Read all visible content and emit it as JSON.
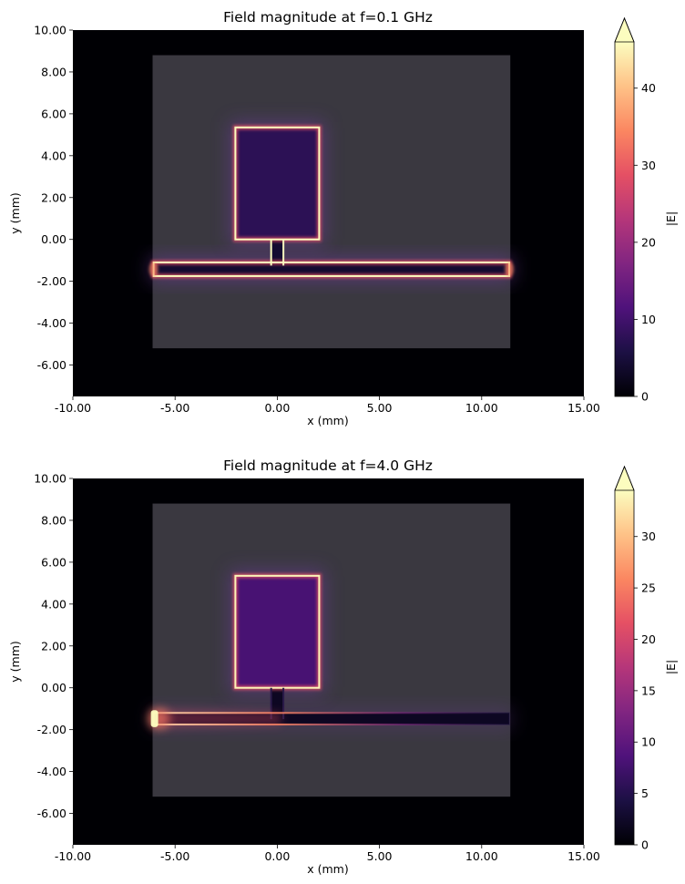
{
  "chart_data": [
    {
      "type": "heatmap",
      "title": "Field magnitude at f=0.1 GHz",
      "xlabel": "x (mm)",
      "ylabel": "y (mm)",
      "xlim": [
        -10,
        15
      ],
      "ylim": [
        -7.5,
        10
      ],
      "x_ticks": [
        -10,
        -5,
        0,
        5,
        10,
        15
      ],
      "x_tick_labels": [
        "-10.00",
        "-5.00",
        "0.00",
        "5.00",
        "10.00",
        "15.00"
      ],
      "y_ticks": [
        -6,
        -4,
        -2,
        0,
        2,
        4,
        6,
        8,
        10
      ],
      "y_tick_labels": [
        "-6.00",
        "-4.00",
        "-2.00",
        "0.00",
        "2.00",
        "4.00",
        "6.00",
        "8.00",
        "10.00"
      ],
      "colormap": "magma",
      "colorbar": {
        "label": "|E|",
        "min": 0,
        "max": 46,
        "extend": "max",
        "ticks": [
          0,
          10,
          20,
          30,
          40
        ],
        "tick_labels": [
          "0",
          "10",
          "20",
          "30",
          "40"
        ]
      },
      "substrate": {
        "x": [
          -6.1,
          11.4
        ],
        "y": [
          -5.2,
          8.8
        ],
        "value": 3.4
      },
      "patch": {
        "x": [
          -2.05,
          2.05
        ],
        "y": [
          0.0,
          5.35
        ],
        "interior_value": 7.5,
        "edge_value": 46
      },
      "stub": {
        "x": [
          -0.3,
          0.3
        ],
        "y": [
          -1.25,
          0.0
        ]
      },
      "feedline": {
        "x": [
          -6.05,
          11.35
        ],
        "y": [
          -1.75,
          -1.1
        ],
        "interior_value": 4,
        "edge_value": 46
      },
      "hotspot": "uniform"
    },
    {
      "type": "heatmap",
      "title": "Field magnitude at f=4.0 GHz",
      "xlabel": "x (mm)",
      "ylabel": "y (mm)",
      "xlim": [
        -10,
        15
      ],
      "ylim": [
        -7.5,
        10
      ],
      "x_ticks": [
        -10,
        -5,
        0,
        5,
        10,
        15
      ],
      "x_tick_labels": [
        "-10.00",
        "-5.00",
        "0.00",
        "5.00",
        "10.00",
        "15.00"
      ],
      "y_ticks": [
        -6,
        -4,
        -2,
        0,
        2,
        4,
        6,
        8,
        10
      ],
      "y_tick_labels": [
        "-6.00",
        "-4.00",
        "-2.00",
        "0.00",
        "2.00",
        "4.00",
        "6.00",
        "8.00",
        "10.00"
      ],
      "colormap": "magma",
      "colorbar": {
        "label": "|E|",
        "min": 0,
        "max": 34.5,
        "extend": "max",
        "ticks": [
          0,
          5,
          10,
          15,
          20,
          25,
          30
        ],
        "tick_labels": [
          "0",
          "5",
          "10",
          "15",
          "20",
          "25",
          "30"
        ]
      },
      "substrate": {
        "x": [
          -6.1,
          11.4
        ],
        "y": [
          -5.2,
          8.8
        ],
        "value": 4.3
      },
      "patch": {
        "x": [
          -2.05,
          2.05
        ],
        "y": [
          0.0,
          5.35
        ],
        "interior_value": 8,
        "edge_value": 34
      },
      "stub": {
        "x": [
          -0.3,
          0.3
        ],
        "y": [
          -1.5,
          0.0
        ]
      },
      "feedline": {
        "x": [
          -6.05,
          11.35
        ],
        "y": [
          -1.75,
          -1.2
        ],
        "interior_value": 2,
        "edge_value": 34
      },
      "hotspot": "left-end"
    }
  ]
}
